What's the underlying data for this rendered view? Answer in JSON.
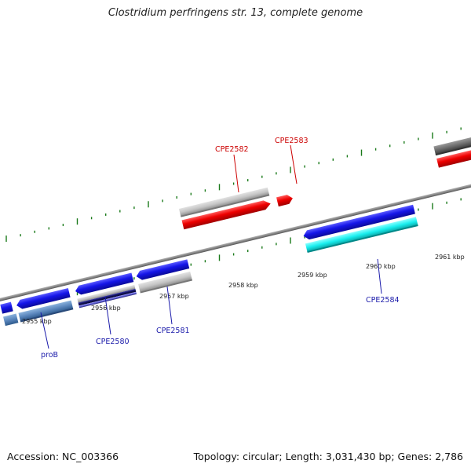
{
  "title": "Clostridium perfringens str. 13, complete genome",
  "footer": {
    "accession": "Accession: NC_003366",
    "summary": "Topology: circular; Length: 3,031,430 bp; Genes: 2,786"
  },
  "colors": {
    "forward_label": "#cc0000",
    "reverse_label": "#1a1aaa",
    "backbone": "#808080",
    "tick": "#1a7a1a"
  },
  "scale_labels": [
    "2955 kbp",
    "2956 kbp",
    "2957 kbp",
    "2958 kbp",
    "2959 kbp",
    "2960 kbp",
    "2961 kbp"
  ],
  "gene_labels": {
    "forward": [
      "CPE2582",
      "CPE2583"
    ],
    "reverse": [
      "proB",
      "CPE2580",
      "CPE2581",
      "CPE2584"
    ]
  }
}
